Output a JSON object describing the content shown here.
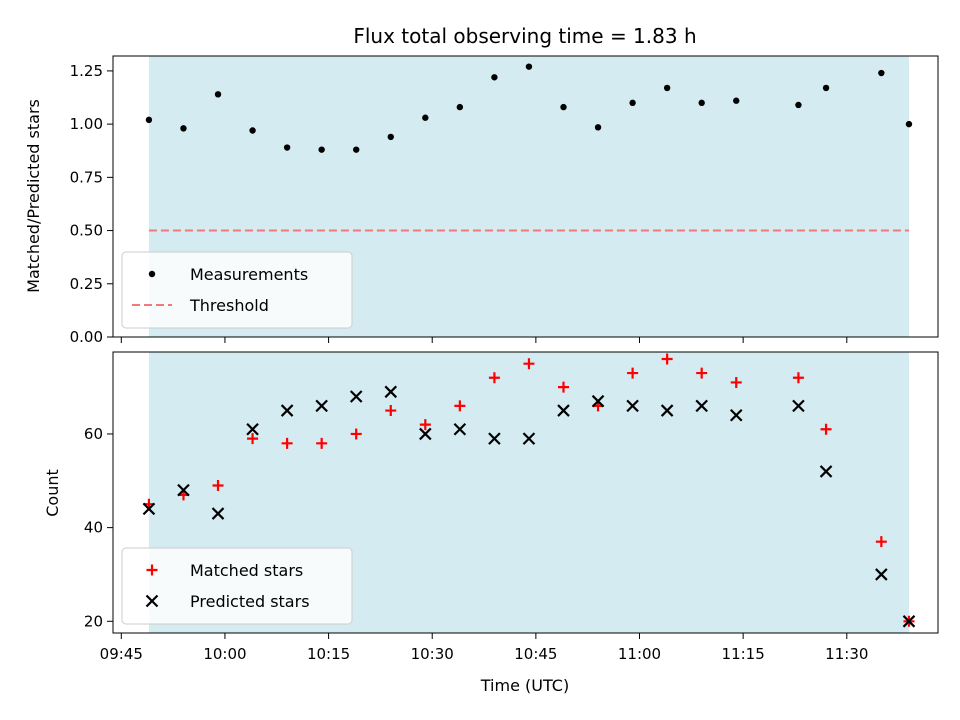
{
  "chart_data": {
    "type": "scatter",
    "title": "Flux total observing time = 1.83 h",
    "xlabel": "Time (UTC)",
    "x_tick_labels": [
      "09:45",
      "10:00",
      "10:15",
      "10:30",
      "10:45",
      "11:00",
      "11:15",
      "11:30"
    ],
    "observing_window": {
      "start": "09:49",
      "end": "11:39",
      "color": "#d4ebf1"
    },
    "panels": [
      {
        "ylabel": "Matched/Predicted stars",
        "ylim": [
          0,
          1.32
        ],
        "y_ticks": [
          0.0,
          0.25,
          0.5,
          0.75,
          1.0,
          1.25
        ],
        "y_tick_labels": [
          "0.00",
          "0.25",
          "0.50",
          "0.75",
          "1.00",
          "1.25"
        ],
        "legend_position": "lower-left",
        "series": [
          {
            "name": "Measurements",
            "marker": "dot",
            "color": "#000000",
            "x": [
              "09:49",
              "09:54",
              "09:59",
              "10:04",
              "10:09",
              "10:14",
              "10:19",
              "10:24",
              "10:29",
              "10:34",
              "10:39",
              "10:44",
              "10:49",
              "10:54",
              "10:59",
              "11:04",
              "11:09",
              "11:14",
              "11:23",
              "11:27",
              "11:35",
              "11:39"
            ],
            "y": [
              1.02,
              0.98,
              1.14,
              0.97,
              0.89,
              0.88,
              0.88,
              0.94,
              1.03,
              1.08,
              1.22,
              1.27,
              1.08,
              0.985,
              1.1,
              1.17,
              1.1,
              1.11,
              1.09,
              1.17,
              1.24,
              1.0
            ]
          }
        ],
        "threshold": {
          "name": "Threshold",
          "value": 0.5,
          "color": "#f07a7a"
        }
      },
      {
        "ylabel": "Count",
        "ylim": [
          17.5,
          77.5
        ],
        "y_ticks": [
          20,
          40,
          60
        ],
        "y_tick_labels": [
          "20",
          "40",
          "60"
        ],
        "legend_position": "lower-left",
        "series": [
          {
            "name": "Matched stars",
            "marker": "plus",
            "color": "#ff0000",
            "x": [
              "09:49",
              "09:54",
              "09:59",
              "10:04",
              "10:09",
              "10:14",
              "10:19",
              "10:24",
              "10:29",
              "10:34",
              "10:39",
              "10:44",
              "10:49",
              "10:54",
              "10:59",
              "11:04",
              "11:09",
              "11:14",
              "11:23",
              "11:27",
              "11:35",
              "11:39"
            ],
            "y": [
              45,
              47,
              49,
              59,
              58,
              58,
              60,
              65,
              62,
              66,
              72,
              75,
              70,
              66,
              73,
              76,
              73,
              71,
              72,
              61,
              37,
              20
            ]
          },
          {
            "name": "Predicted stars",
            "marker": "x",
            "color": "#000000",
            "x": [
              "09:49",
              "09:54",
              "09:59",
              "10:04",
              "10:09",
              "10:14",
              "10:19",
              "10:24",
              "10:29",
              "10:34",
              "10:39",
              "10:44",
              "10:49",
              "10:54",
              "10:59",
              "11:04",
              "11:09",
              "11:14",
              "11:23",
              "11:27",
              "11:35",
              "11:39"
            ],
            "y": [
              44,
              48,
              43,
              61,
              65,
              66,
              68,
              69,
              60,
              61,
              59,
              59,
              65,
              67,
              66,
              65,
              66,
              64,
              66,
              52,
              30,
              20
            ]
          }
        ]
      }
    ]
  }
}
